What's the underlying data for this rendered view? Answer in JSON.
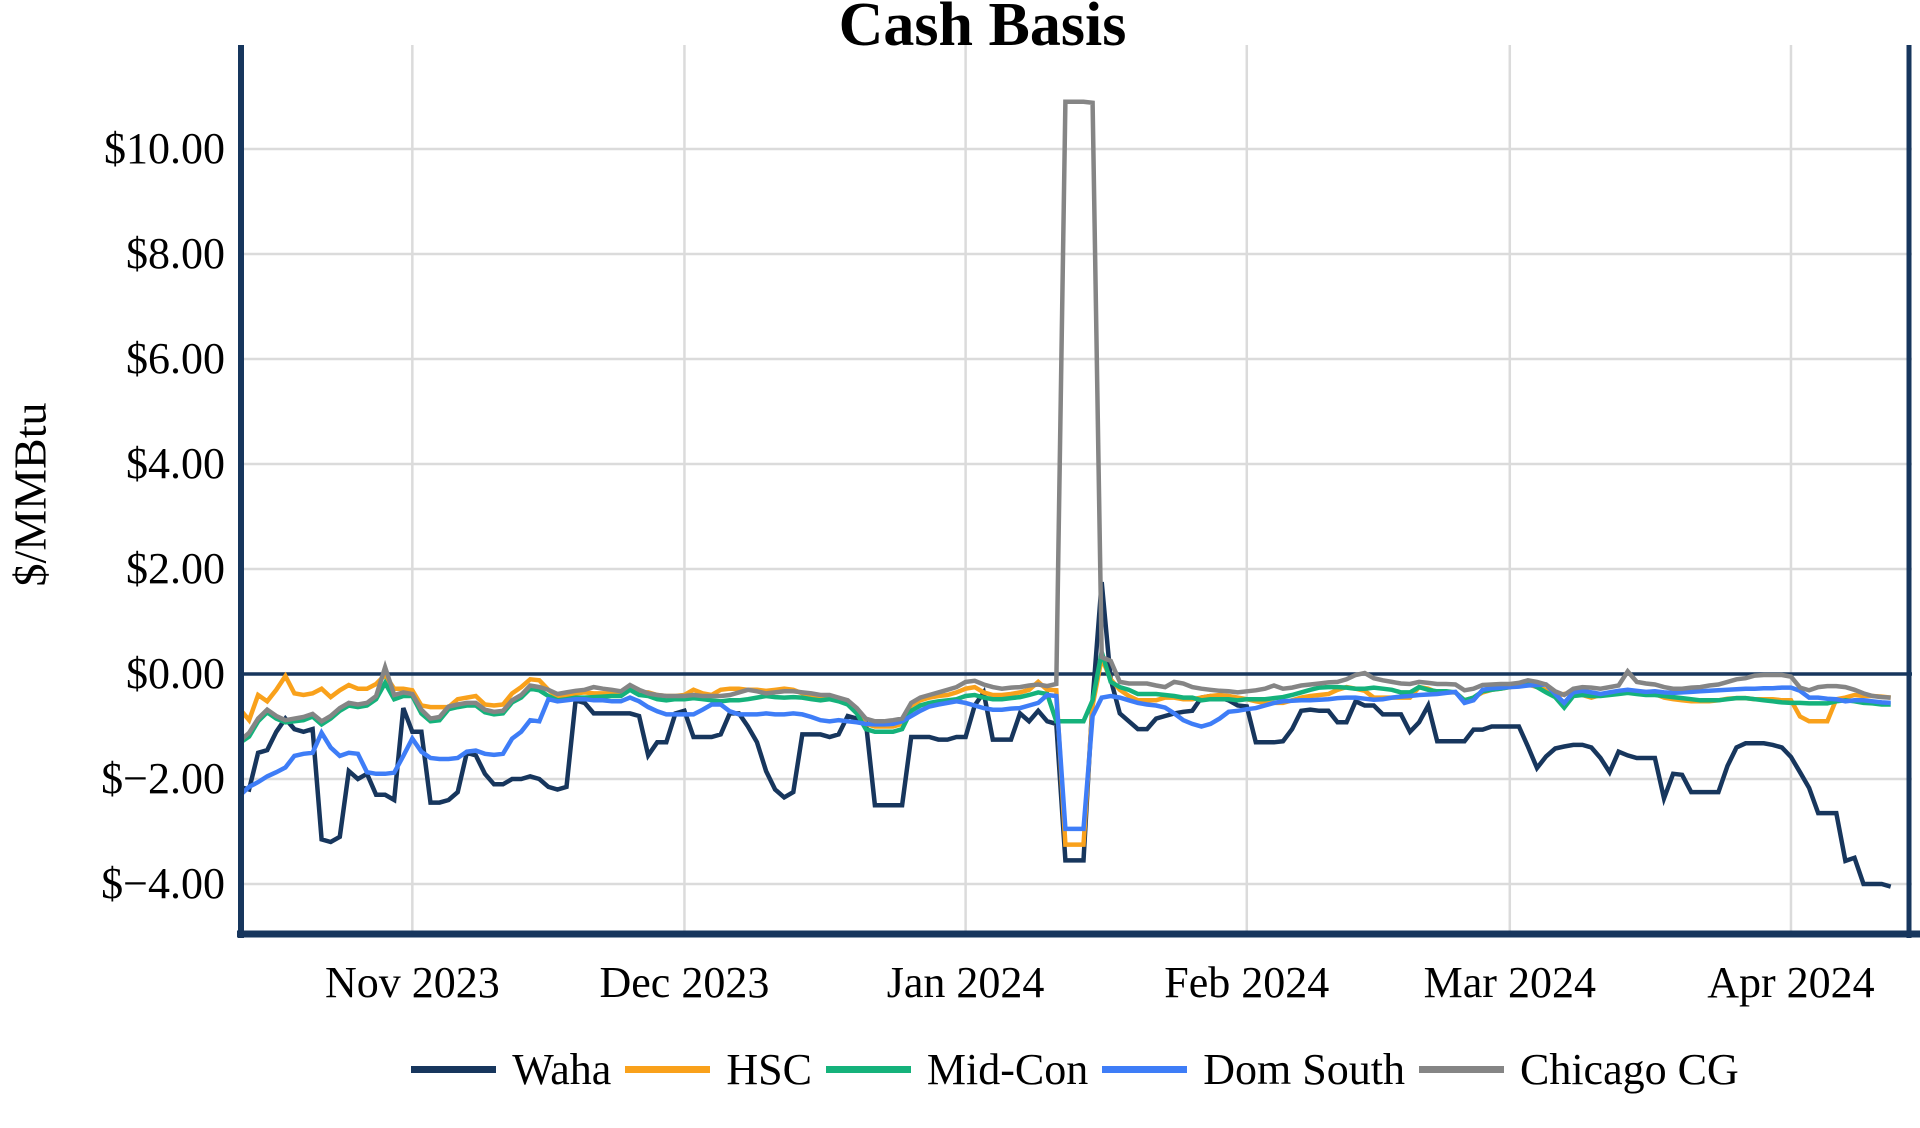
{
  "page": {
    "background": "#ffffff",
    "text_color": "#000000"
  },
  "chart_data": {
    "type": "line",
    "title": "Cash Basis",
    "ylabel": "$/MMBtu",
    "xlabel": "",
    "x_axis": {
      "start_date": "2023-10-13",
      "end_date": "2024-04-12",
      "frequency": "daily",
      "n_points": 183
    },
    "ylim": [
      -5.0,
      11.7
    ],
    "grid": true,
    "legend_position": "bottom",
    "colors": {
      "axis": "#17365D",
      "grid": "#DBDBDB",
      "zero_line": "#17365D",
      "background": "#FFFFFF"
    },
    "y_ticks": [
      {
        "value": 10,
        "label": "$10.00"
      },
      {
        "value": 8,
        "label": "$8.00"
      },
      {
        "value": 6,
        "label": "$6.00"
      },
      {
        "value": 4,
        "label": "$4.00"
      },
      {
        "value": 2,
        "label": "$2.00"
      },
      {
        "value": 0,
        "label": "$0.00"
      },
      {
        "value": -2,
        "label": "$−2.00"
      },
      {
        "value": -4,
        "label": "$−4.00"
      }
    ],
    "x_ticks": [
      {
        "label": "Nov 2023",
        "day_index": 19
      },
      {
        "label": "Dec 2023",
        "day_index": 49
      },
      {
        "label": "Jan 2024",
        "day_index": 80
      },
      {
        "label": "Feb 2024",
        "day_index": 111
      },
      {
        "label": "Mar 2024",
        "day_index": 140
      },
      {
        "label": "Apr 2024",
        "day_index": 171
      }
    ],
    "series": [
      {
        "name": "Waha",
        "color": "#17365D",
        "values": [
          -2.15,
          -2.2,
          -1.5,
          -1.45,
          -1.1,
          -0.85,
          -1.05,
          -1.1,
          -1.05,
          -3.15,
          -3.2,
          -3.1,
          -1.85,
          -2.0,
          -1.9,
          -2.3,
          -2.3,
          -2.4,
          -0.65,
          -1.1,
          -1.1,
          -2.45,
          -2.45,
          -2.4,
          -2.25,
          -1.5,
          -1.55,
          -1.9,
          -2.1,
          -2.1,
          -2.0,
          -2.0,
          -1.95,
          -2.0,
          -2.15,
          -2.2,
          -2.15,
          -0.5,
          -0.55,
          -0.75,
          -0.75,
          -0.75,
          -0.75,
          -0.75,
          -0.8,
          -1.55,
          -1.3,
          -1.3,
          -0.75,
          -0.7,
          -1.2,
          -1.2,
          -1.2,
          -1.15,
          -0.75,
          -0.75,
          -1.0,
          -1.3,
          -1.85,
          -2.2,
          -2.35,
          -2.25,
          -1.15,
          -1.15,
          -1.15,
          -1.2,
          -1.15,
          -0.8,
          -0.85,
          -0.9,
          -2.5,
          -2.5,
          -2.5,
          -2.5,
          -1.2,
          -1.2,
          -1.2,
          -1.25,
          -1.25,
          -1.2,
          -1.2,
          -0.6,
          -0.35,
          -1.25,
          -1.25,
          -1.25,
          -0.75,
          -0.9,
          -0.7,
          -0.9,
          -0.95,
          -3.55,
          -3.55,
          -3.55,
          -0.5,
          1.75,
          -0.1,
          -0.75,
          -0.9,
          -1.05,
          -1.05,
          -0.85,
          -0.8,
          -0.75,
          -0.72,
          -0.7,
          -0.45,
          -0.42,
          -0.45,
          -0.5,
          -0.6,
          -0.62,
          -1.3,
          -1.3,
          -1.3,
          -1.28,
          -1.05,
          -0.7,
          -0.68,
          -0.7,
          -0.7,
          -0.92,
          -0.92,
          -0.52,
          -0.6,
          -0.6,
          -0.77,
          -0.77,
          -0.77,
          -1.1,
          -0.92,
          -0.6,
          -1.28,
          -1.28,
          -1.28,
          -1.28,
          -1.06,
          -1.06,
          -1.0,
          -1.0,
          -1.0,
          -1.0,
          -1.38,
          -1.79,
          -1.57,
          -1.42,
          -1.38,
          -1.35,
          -1.35,
          -1.4,
          -1.6,
          -1.87,
          -1.48,
          -1.55,
          -1.6,
          -1.6,
          -1.6,
          -2.37,
          -1.9,
          -1.92,
          -2.25,
          -2.25,
          -2.25,
          -2.25,
          -1.75,
          -1.4,
          -1.32,
          -1.32,
          -1.32,
          -1.35,
          -1.4,
          -1.58,
          -1.87,
          -2.17,
          -2.65,
          -2.65,
          -2.65,
          -3.56,
          -3.5,
          -4.0,
          -4.0,
          -4.0,
          -4.05
        ]
      },
      {
        "name": "HSC",
        "color": "#F9A11B",
        "values": [
          -0.67,
          -0.88,
          -0.4,
          -0.52,
          -0.3,
          -0.04,
          -0.37,
          -0.4,
          -0.37,
          -0.28,
          -0.44,
          -0.31,
          -0.21,
          -0.28,
          -0.28,
          -0.19,
          -0.02,
          -0.28,
          -0.28,
          -0.31,
          -0.6,
          -0.63,
          -0.63,
          -0.63,
          -0.48,
          -0.45,
          -0.42,
          -0.58,
          -0.6,
          -0.58,
          -0.37,
          -0.25,
          -0.1,
          -0.12,
          -0.3,
          -0.45,
          -0.4,
          -0.37,
          -0.35,
          -0.37,
          -0.37,
          -0.37,
          -0.35,
          -0.25,
          -0.35,
          -0.35,
          -0.4,
          -0.42,
          -0.42,
          -0.4,
          -0.3,
          -0.37,
          -0.4,
          -0.3,
          -0.28,
          -0.28,
          -0.3,
          -0.3,
          -0.32,
          -0.3,
          -0.28,
          -0.3,
          -0.37,
          -0.42,
          -0.47,
          -0.44,
          -0.5,
          -0.55,
          -0.7,
          -0.95,
          -1.0,
          -1.0,
          -1.0,
          -0.95,
          -0.6,
          -0.5,
          -0.45,
          -0.42,
          -0.4,
          -0.35,
          -0.28,
          -0.25,
          -0.35,
          -0.4,
          -0.4,
          -0.38,
          -0.35,
          -0.3,
          -0.15,
          -0.3,
          -0.31,
          -3.25,
          -3.25,
          -3.25,
          -0.6,
          0.3,
          -0.1,
          -0.3,
          -0.42,
          -0.5,
          -0.5,
          -0.5,
          -0.45,
          -0.45,
          -0.48,
          -0.48,
          -0.45,
          -0.42,
          -0.4,
          -0.42,
          -0.45,
          -0.48,
          -0.52,
          -0.55,
          -0.55,
          -0.55,
          -0.5,
          -0.45,
          -0.42,
          -0.4,
          -0.38,
          -0.3,
          -0.25,
          -0.28,
          -0.32,
          -0.45,
          -0.45,
          -0.45,
          -0.45,
          -0.45,
          -0.25,
          -0.28,
          -0.35,
          -0.35,
          -0.35,
          -0.5,
          -0.45,
          -0.35,
          -0.3,
          -0.28,
          -0.25,
          -0.22,
          -0.2,
          -0.25,
          -0.3,
          -0.42,
          -0.38,
          -0.35,
          -0.4,
          -0.45,
          -0.4,
          -0.38,
          -0.35,
          -0.32,
          -0.35,
          -0.35,
          -0.38,
          -0.45,
          -0.48,
          -0.5,
          -0.52,
          -0.52,
          -0.52,
          -0.5,
          -0.47,
          -0.46,
          -0.46,
          -0.48,
          -0.48,
          -0.48,
          -0.5,
          -0.5,
          -0.81,
          -0.9,
          -0.9,
          -0.9,
          -0.48,
          -0.45,
          -0.4,
          -0.42,
          -0.42,
          -0.43,
          -0.45
        ]
      },
      {
        "name": "Mid-Con",
        "color": "#15B27B",
        "values": [
          -1.31,
          -1.19,
          -0.9,
          -0.73,
          -0.85,
          -0.92,
          -0.9,
          -0.88,
          -0.81,
          -0.96,
          -0.85,
          -0.7,
          -0.6,
          -0.63,
          -0.6,
          -0.48,
          -0.17,
          -0.48,
          -0.42,
          -0.42,
          -0.75,
          -0.9,
          -0.88,
          -0.67,
          -0.63,
          -0.6,
          -0.6,
          -0.73,
          -0.77,
          -0.75,
          -0.54,
          -0.45,
          -0.28,
          -0.31,
          -0.42,
          -0.5,
          -0.48,
          -0.45,
          -0.45,
          -0.44,
          -0.43,
          -0.42,
          -0.42,
          -0.3,
          -0.4,
          -0.42,
          -0.48,
          -0.5,
          -0.48,
          -0.48,
          -0.46,
          -0.48,
          -0.5,
          -0.52,
          -0.5,
          -0.5,
          -0.48,
          -0.45,
          -0.42,
          -0.44,
          -0.45,
          -0.44,
          -0.45,
          -0.48,
          -0.5,
          -0.48,
          -0.52,
          -0.58,
          -0.75,
          -1.05,
          -1.1,
          -1.1,
          -1.1,
          -1.05,
          -0.7,
          -0.6,
          -0.55,
          -0.52,
          -0.5,
          -0.48,
          -0.42,
          -0.4,
          -0.45,
          -0.48,
          -0.48,
          -0.46,
          -0.44,
          -0.4,
          -0.35,
          -0.38,
          -0.9,
          -0.9,
          -0.9,
          -0.9,
          -0.5,
          0.42,
          -0.15,
          -0.25,
          -0.3,
          -0.38,
          -0.38,
          -0.38,
          -0.4,
          -0.42,
          -0.45,
          -0.45,
          -0.5,
          -0.48,
          -0.48,
          -0.48,
          -0.5,
          -0.48,
          -0.48,
          -0.48,
          -0.46,
          -0.44,
          -0.4,
          -0.35,
          -0.3,
          -0.26,
          -0.25,
          -0.25,
          -0.26,
          -0.28,
          -0.28,
          -0.26,
          -0.28,
          -0.3,
          -0.35,
          -0.35,
          -0.25,
          -0.3,
          -0.33,
          -0.33,
          -0.35,
          -0.5,
          -0.45,
          -0.33,
          -0.3,
          -0.28,
          -0.25,
          -0.2,
          -0.16,
          -0.25,
          -0.35,
          -0.44,
          -0.64,
          -0.42,
          -0.4,
          -0.42,
          -0.42,
          -0.4,
          -0.38,
          -0.36,
          -0.38,
          -0.4,
          -0.4,
          -0.42,
          -0.44,
          -0.46,
          -0.48,
          -0.5,
          -0.5,
          -0.5,
          -0.48,
          -0.46,
          -0.46,
          -0.48,
          -0.5,
          -0.52,
          -0.54,
          -0.55,
          -0.55,
          -0.56,
          -0.56,
          -0.56,
          -0.52,
          -0.5,
          -0.52,
          -0.55,
          -0.56,
          -0.58,
          -0.58
        ]
      },
      {
        "name": "Dom South",
        "color": "#3E7DF7",
        "values": [
          -2.31,
          -2.15,
          -2.06,
          -1.95,
          -1.87,
          -1.78,
          -1.56,
          -1.52,
          -1.5,
          -1.12,
          -1.4,
          -1.56,
          -1.5,
          -1.52,
          -1.87,
          -1.9,
          -1.9,
          -1.88,
          -1.56,
          -1.23,
          -1.48,
          -1.6,
          -1.62,
          -1.62,
          -1.6,
          -1.48,
          -1.46,
          -1.52,
          -1.54,
          -1.52,
          -1.23,
          -1.1,
          -0.88,
          -0.9,
          -0.48,
          -0.52,
          -0.5,
          -0.48,
          -0.48,
          -0.5,
          -0.5,
          -0.52,
          -0.52,
          -0.45,
          -0.52,
          -0.63,
          -0.71,
          -0.77,
          -0.77,
          -0.77,
          -0.77,
          -0.68,
          -0.58,
          -0.58,
          -0.71,
          -0.77,
          -0.77,
          -0.77,
          -0.75,
          -0.77,
          -0.77,
          -0.75,
          -0.77,
          -0.82,
          -0.88,
          -0.9,
          -0.88,
          -0.9,
          -0.92,
          -0.95,
          -0.96,
          -0.96,
          -0.95,
          -0.9,
          -0.8,
          -0.7,
          -0.62,
          -0.58,
          -0.55,
          -0.52,
          -0.55,
          -0.6,
          -0.65,
          -0.68,
          -0.68,
          -0.66,
          -0.65,
          -0.6,
          -0.55,
          -0.4,
          -0.42,
          -2.95,
          -2.95,
          -2.95,
          -0.8,
          -0.45,
          -0.42,
          -0.45,
          -0.5,
          -0.55,
          -0.58,
          -0.6,
          -0.64,
          -0.75,
          -0.88,
          -0.95,
          -1.0,
          -0.95,
          -0.85,
          -0.72,
          -0.7,
          -0.67,
          -0.65,
          -0.6,
          -0.55,
          -0.52,
          -0.51,
          -0.5,
          -0.5,
          -0.49,
          -0.48,
          -0.46,
          -0.45,
          -0.45,
          -0.47,
          -0.49,
          -0.48,
          -0.45,
          -0.43,
          -0.42,
          -0.4,
          -0.39,
          -0.38,
          -0.36,
          -0.34,
          -0.55,
          -0.5,
          -0.3,
          -0.27,
          -0.26,
          -0.25,
          -0.24,
          -0.22,
          -0.21,
          -0.2,
          -0.38,
          -0.55,
          -0.35,
          -0.32,
          -0.35,
          -0.38,
          -0.35,
          -0.32,
          -0.3,
          -0.32,
          -0.34,
          -0.33,
          -0.35,
          -0.36,
          -0.35,
          -0.34,
          -0.33,
          -0.32,
          -0.31,
          -0.3,
          -0.29,
          -0.28,
          -0.28,
          -0.27,
          -0.27,
          -0.26,
          -0.26,
          -0.32,
          -0.45,
          -0.45,
          -0.47,
          -0.48,
          -0.52,
          -0.5,
          -0.5,
          -0.52,
          -0.54,
          -0.55
        ]
      },
      {
        "name": "Chicago CG",
        "color": "#858585",
        "values": [
          -1.27,
          -1.12,
          -0.85,
          -0.68,
          -0.8,
          -0.88,
          -0.85,
          -0.82,
          -0.76,
          -0.9,
          -0.8,
          -0.65,
          -0.55,
          -0.58,
          -0.55,
          -0.42,
          0.13,
          -0.4,
          -0.35,
          -0.38,
          -0.68,
          -0.85,
          -0.82,
          -0.62,
          -0.58,
          -0.55,
          -0.55,
          -0.68,
          -0.72,
          -0.7,
          -0.5,
          -0.4,
          -0.22,
          -0.25,
          -0.3,
          -0.38,
          -0.35,
          -0.32,
          -0.3,
          -0.25,
          -0.28,
          -0.3,
          -0.33,
          -0.21,
          -0.3,
          -0.37,
          -0.4,
          -0.42,
          -0.42,
          -0.42,
          -0.4,
          -0.42,
          -0.42,
          -0.42,
          -0.4,
          -0.35,
          -0.3,
          -0.33,
          -0.37,
          -0.35,
          -0.33,
          -0.33,
          -0.35,
          -0.37,
          -0.4,
          -0.4,
          -0.45,
          -0.5,
          -0.65,
          -0.85,
          -0.9,
          -0.9,
          -0.88,
          -0.85,
          -0.55,
          -0.45,
          -0.4,
          -0.35,
          -0.3,
          -0.25,
          -0.15,
          -0.13,
          -0.2,
          -0.25,
          -0.28,
          -0.26,
          -0.25,
          -0.22,
          -0.2,
          -0.23,
          -0.19,
          10.9,
          10.9,
          10.9,
          10.88,
          0.32,
          0.25,
          -0.15,
          -0.18,
          -0.18,
          -0.18,
          -0.22,
          -0.25,
          -0.15,
          -0.18,
          -0.25,
          -0.28,
          -0.3,
          -0.32,
          -0.33,
          -0.35,
          -0.33,
          -0.31,
          -0.28,
          -0.22,
          -0.28,
          -0.26,
          -0.22,
          -0.2,
          -0.18,
          -0.16,
          -0.15,
          -0.1,
          -0.02,
          0.02,
          -0.08,
          -0.12,
          -0.15,
          -0.18,
          -0.19,
          -0.15,
          -0.17,
          -0.19,
          -0.19,
          -0.2,
          -0.31,
          -0.28,
          -0.21,
          -0.2,
          -0.19,
          -0.19,
          -0.17,
          -0.12,
          -0.15,
          -0.2,
          -0.33,
          -0.4,
          -0.28,
          -0.25,
          -0.26,
          -0.28,
          -0.25,
          -0.22,
          0.05,
          -0.15,
          -0.18,
          -0.2,
          -0.25,
          -0.28,
          -0.28,
          -0.26,
          -0.25,
          -0.22,
          -0.2,
          -0.15,
          -0.1,
          -0.08,
          -0.03,
          -0.02,
          -0.02,
          -0.02,
          -0.05,
          -0.26,
          -0.31,
          -0.25,
          -0.23,
          -0.23,
          -0.25,
          -0.3,
          -0.37,
          -0.42,
          -0.44,
          -0.45
        ]
      }
    ]
  }
}
